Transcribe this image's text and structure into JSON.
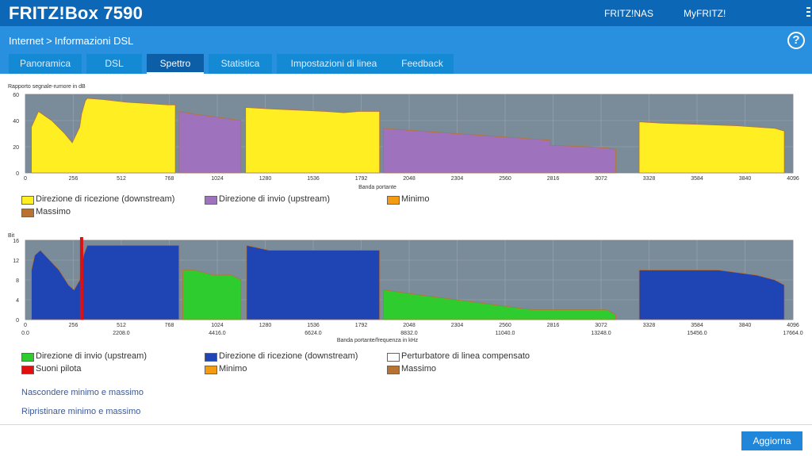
{
  "header": {
    "brand": "FRITZ!Box 7590",
    "links": [
      "FRITZ!NAS",
      "MyFRITZ!"
    ]
  },
  "breadcrumb": {
    "section": "Internet",
    "separator": ">",
    "page": "Informazioni DSL"
  },
  "tabs": [
    {
      "label": "Panoramica",
      "active": false
    },
    {
      "label": "DSL",
      "active": false
    },
    {
      "label": "Spettro",
      "active": true
    },
    {
      "label": "Statistica",
      "active": false
    },
    {
      "label": "Impostazioni di linea",
      "active": false
    },
    {
      "label": "Feedback",
      "active": false
    }
  ],
  "chart_data": [
    {
      "type": "area",
      "ylabel": "Rapporto segnale-rumore in dB",
      "xlabel": "Banda portante",
      "ylim": [
        0,
        60
      ],
      "yticks": [
        0,
        20,
        40,
        60
      ],
      "xlim": [
        0,
        4096
      ],
      "xticks": [
        0,
        256,
        512,
        768,
        1024,
        1280,
        1536,
        1792,
        2048,
        2304,
        2560,
        2816,
        3072,
        3328,
        3584,
        3840,
        4096
      ],
      "grid": true,
      "colors": {
        "plot_bg": "#7a8b99",
        "downstream": "#ffee22",
        "upstream": "#9f72bd",
        "min": "#f39c12",
        "max": "#b87333"
      },
      "series": [
        {
          "name": "Direzione di ricezione (downstream)",
          "role": "downstream",
          "points": [
            [
              32,
              0
            ],
            [
              32,
              35
            ],
            [
              70,
              47
            ],
            [
              140,
              40
            ],
            [
              210,
              30
            ],
            [
              250,
              23
            ],
            [
              290,
              35
            ],
            [
              300,
              45
            ],
            [
              320,
              55
            ],
            [
              330,
              57
            ],
            [
              420,
              56
            ],
            [
              540,
              54
            ],
            [
              650,
              53
            ],
            [
              760,
              52
            ],
            [
              800,
              52
            ],
            [
              800,
              0
            ]
          ]
        },
        {
          "name": "Direzione di invio (upstream)",
          "role": "upstream",
          "points": [
            [
              820,
              0
            ],
            [
              820,
              47
            ],
            [
              900,
              45
            ],
            [
              1000,
              43
            ],
            [
              1100,
              41
            ],
            [
              1150,
              40
            ],
            [
              1150,
              0
            ]
          ]
        },
        {
          "name": "Direzione di ricezione (downstream)",
          "role": "downstream",
          "points": [
            [
              1175,
              0
            ],
            [
              1175,
              50
            ],
            [
              1300,
              49
            ],
            [
              1450,
              48
            ],
            [
              1600,
              47
            ],
            [
              1700,
              46
            ],
            [
              1780,
              47
            ],
            [
              1890,
              47
            ],
            [
              1890,
              0
            ]
          ]
        },
        {
          "name": "Direzione di invio (upstream)",
          "role": "upstream",
          "points": [
            [
              1910,
              0
            ],
            [
              1910,
              34
            ],
            [
              2100,
              32
            ],
            [
              2300,
              30
            ],
            [
              2500,
              28
            ],
            [
              2700,
              26
            ],
            [
              2800,
              25
            ],
            [
              2800,
              21
            ],
            [
              3000,
              20
            ],
            [
              3100,
              19
            ],
            [
              3150,
              18
            ],
            [
              3150,
              0
            ]
          ]
        },
        {
          "name": "Direzione di ricezione (downstream)",
          "role": "downstream",
          "points": [
            [
              3275,
              0
            ],
            [
              3275,
              39
            ],
            [
              3400,
              38
            ],
            [
              3600,
              37
            ],
            [
              3800,
              36
            ],
            [
              4000,
              34
            ],
            [
              4050,
              32
            ],
            [
              4050,
              0
            ]
          ]
        }
      ],
      "legend": [
        {
          "label": "Direzione di ricezione (downstream)",
          "color": "#ffee22"
        },
        {
          "label": "Direzione di invio (upstream)",
          "color": "#9f72bd"
        },
        {
          "label": "Minimo",
          "color": "#f39c12"
        },
        {
          "label": "Massimo",
          "color": "#b87333"
        }
      ]
    },
    {
      "type": "area",
      "ylabel": "Bit",
      "xlabel": "Banda portante/frequenza in kHz",
      "ylim": [
        0,
        16
      ],
      "yticks": [
        0,
        4,
        8,
        12,
        16
      ],
      "xlim": [
        0,
        4096
      ],
      "xticks": [
        0,
        256,
        512,
        768,
        1024,
        1280,
        1536,
        1792,
        2048,
        2304,
        2560,
        2816,
        3072,
        3328,
        3584,
        3840,
        4096
      ],
      "xticks_khz": [
        "0.0",
        "2208.0",
        "4416.0",
        "6624.0",
        "8832.0",
        "11040.0",
        "13248.0",
        "15456.0",
        "17664.0"
      ],
      "grid": true,
      "colors": {
        "plot_bg": "#7a8b99",
        "downstream": "#1f45b5",
        "upstream": "#2ecc2e",
        "pilot": "#e01010",
        "min": "#f39c12",
        "max": "#b87333"
      },
      "series": [
        {
          "name": "Direzione di ricezione (downstream)",
          "role": "downstream",
          "points": [
            [
              32,
              0
            ],
            [
              32,
              10
            ],
            [
              50,
              13
            ],
            [
              80,
              14
            ],
            [
              130,
              12
            ],
            [
              180,
              10
            ],
            [
              230,
              7
            ],
            [
              260,
              6
            ],
            [
              290,
              8
            ],
            [
              310,
              13
            ],
            [
              330,
              15
            ],
            [
              820,
              15
            ],
            [
              820,
              0
            ]
          ]
        },
        {
          "name": "Direzione di invio (upstream)",
          "role": "upstream",
          "points": [
            [
              840,
              0
            ],
            [
              840,
              10
            ],
            [
              900,
              10
            ],
            [
              1000,
              9
            ],
            [
              1100,
              9
            ],
            [
              1150,
              8
            ],
            [
              1150,
              0
            ]
          ]
        },
        {
          "name": "Direzione di ricezione (downstream)",
          "role": "downstream",
          "points": [
            [
              1180,
              0
            ],
            [
              1180,
              15
            ],
            [
              1300,
              14
            ],
            [
              1500,
              14
            ],
            [
              1700,
              14
            ],
            [
              1890,
              14
            ],
            [
              1890,
              0
            ]
          ]
        },
        {
          "name": "Direzione di invio (upstream)",
          "role": "upstream",
          "points": [
            [
              1910,
              0
            ],
            [
              1910,
              6
            ],
            [
              2100,
              5
            ],
            [
              2300,
              4
            ],
            [
              2500,
              3
            ],
            [
              2700,
              2
            ],
            [
              2900,
              2
            ],
            [
              3100,
              2
            ],
            [
              3150,
              1
            ],
            [
              3150,
              0
            ]
          ]
        },
        {
          "name": "Direzione di ricezione (downstream)",
          "role": "downstream",
          "points": [
            [
              3275,
              0
            ],
            [
              3275,
              10
            ],
            [
              3500,
              10
            ],
            [
              3700,
              10
            ],
            [
              3900,
              9
            ],
            [
              4000,
              8
            ],
            [
              4050,
              7
            ],
            [
              4050,
              0
            ]
          ]
        }
      ],
      "pilot_tones": [
        [
          300,
          16
        ]
      ],
      "legend": [
        {
          "label": "Direzione di invio (upstream)",
          "color": "#2ecc2e"
        },
        {
          "label": "Direzione di ricezione (downstream)",
          "color": "#1f45b5"
        },
        {
          "label": "Perturbatore di linea compensato",
          "color": "#ffffff"
        },
        {
          "label": "Suoni pilota",
          "color": "#e01010"
        },
        {
          "label": "Minimo",
          "color": "#f39c12"
        },
        {
          "label": "Massimo",
          "color": "#b87333"
        }
      ]
    }
  ],
  "links": {
    "hide_minmax": "Nascondere minimo e massimo",
    "restore_minmax": "Ripristinare minimo e massimo"
  },
  "footer": {
    "refresh_label": "Aggiorna"
  }
}
